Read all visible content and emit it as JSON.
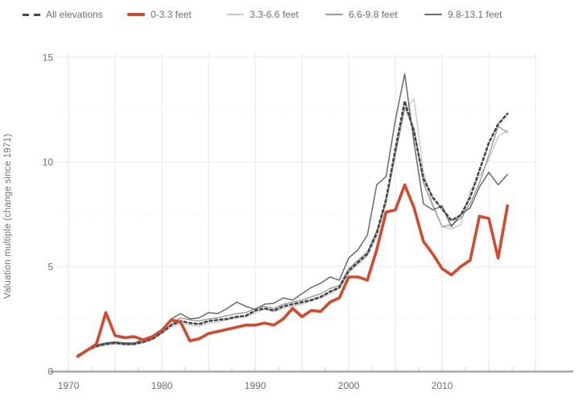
{
  "chart_data": {
    "type": "line",
    "title": "",
    "xlabel": "",
    "ylabel": "Valuation multiple (change since 1971)",
    "x_range": [
      1970,
      2020
    ],
    "ylim": [
      0,
      15
    ],
    "x_tick_labels": [
      "1970",
      "1980",
      "1990",
      "2000",
      "2010"
    ],
    "y_tick_labels": [
      "0",
      "5",
      "10",
      "15"
    ],
    "grid": {
      "x_step_years": 5,
      "y_major_step": 5,
      "y_minor_step": 2.5,
      "x_minor_tick_years": 2.5
    },
    "legend_position": "top",
    "x": [
      1971,
      1972,
      1973,
      1974,
      1975,
      1976,
      1977,
      1978,
      1979,
      1980,
      1981,
      1982,
      1983,
      1984,
      1985,
      1986,
      1987,
      1988,
      1989,
      1990,
      1991,
      1992,
      1993,
      1994,
      1995,
      1996,
      1997,
      1998,
      1999,
      2000,
      2001,
      2002,
      2003,
      2004,
      2005,
      2006,
      2007,
      2008,
      2009,
      2010,
      2011,
      2012,
      2013,
      2014,
      2015,
      2016,
      2017
    ],
    "series": [
      {
        "name": "All elevations",
        "key": "all-elevations",
        "color": "#474747",
        "style": "dashed",
        "width": 2.6,
        "z": 4,
        "values": [
          0.75,
          1.0,
          1.2,
          1.3,
          1.35,
          1.3,
          1.3,
          1.4,
          1.55,
          1.85,
          2.2,
          2.4,
          2.3,
          2.25,
          2.4,
          2.45,
          2.5,
          2.6,
          2.65,
          2.9,
          3.0,
          2.9,
          3.1,
          3.2,
          3.3,
          3.4,
          3.55,
          3.8,
          4.0,
          4.8,
          5.2,
          5.6,
          6.6,
          8.2,
          10.6,
          12.9,
          11.4,
          9.2,
          8.3,
          7.75,
          7.2,
          7.45,
          8.3,
          9.6,
          10.9,
          11.8,
          12.3
        ]
      },
      {
        "name": "0-3.3 feet",
        "key": "0-3.3-feet",
        "color": "#d6492a",
        "style": "solid",
        "width": 3.6,
        "z": 5,
        "values": [
          0.7,
          1.0,
          1.3,
          2.8,
          1.7,
          1.6,
          1.65,
          1.5,
          1.65,
          1.95,
          2.45,
          2.35,
          1.45,
          1.55,
          1.8,
          1.9,
          2.0,
          2.1,
          2.2,
          2.2,
          2.3,
          2.2,
          2.5,
          3.0,
          2.6,
          2.9,
          2.85,
          3.3,
          3.5,
          4.5,
          4.5,
          4.35,
          5.8,
          7.6,
          7.7,
          8.9,
          7.8,
          6.2,
          5.6,
          4.9,
          4.6,
          5.0,
          5.3,
          7.4,
          7.3,
          5.4,
          7.9
        ]
      },
      {
        "name": "3.3-6.6 feet",
        "key": "3.3-6.6-feet",
        "color": "#c9c9c9",
        "style": "solid",
        "width": 1.4,
        "z": 1,
        "values": [
          0.75,
          0.95,
          1.15,
          1.25,
          1.3,
          1.25,
          1.25,
          1.35,
          1.5,
          1.8,
          2.1,
          2.3,
          2.2,
          2.15,
          2.3,
          2.35,
          2.45,
          2.55,
          2.6,
          2.8,
          2.95,
          2.85,
          3.0,
          3.1,
          3.2,
          3.35,
          3.5,
          3.7,
          3.95,
          4.7,
          5.1,
          5.5,
          6.4,
          8.0,
          10.3,
          12.5,
          13.0,
          9.5,
          8.0,
          6.9,
          6.8,
          7.0,
          8.6,
          9.3,
          10.1,
          11.2,
          11.5
        ]
      },
      {
        "name": "6.6-9.8 feet",
        "key": "6.6-9.8-feet",
        "color": "#9b9b9b",
        "style": "solid",
        "width": 1.4,
        "z": 2,
        "values": [
          0.75,
          1.0,
          1.2,
          1.3,
          1.35,
          1.3,
          1.3,
          1.4,
          1.55,
          1.85,
          2.25,
          2.55,
          2.45,
          2.4,
          2.5,
          2.55,
          2.65,
          2.75,
          2.8,
          3.0,
          3.1,
          3.0,
          3.2,
          3.3,
          3.4,
          3.55,
          3.7,
          3.95,
          4.1,
          4.9,
          5.3,
          5.7,
          6.7,
          8.1,
          10.4,
          12.6,
          11.6,
          9.0,
          7.9,
          6.9,
          7.0,
          7.3,
          8.0,
          9.0,
          10.3,
          11.7,
          11.4
        ]
      },
      {
        "name": "9.8-13.1 feet",
        "key": "9.8-13.1-feet",
        "color": "#6a6a6a",
        "style": "solid",
        "width": 1.5,
        "z": 3,
        "values": [
          0.75,
          1.05,
          1.25,
          1.35,
          1.4,
          1.35,
          1.35,
          1.5,
          1.7,
          2.0,
          2.5,
          2.75,
          2.5,
          2.55,
          2.8,
          2.75,
          3.0,
          3.3,
          3.1,
          2.95,
          3.2,
          3.25,
          3.5,
          3.4,
          3.7,
          4.0,
          4.2,
          4.5,
          4.35,
          5.4,
          5.8,
          6.5,
          8.9,
          9.3,
          12.0,
          14.2,
          10.9,
          8.0,
          7.7,
          7.9,
          6.9,
          7.5,
          7.8,
          8.8,
          9.5,
          8.9,
          9.4
        ]
      }
    ],
    "colors": {
      "grid_major": "#e7e7e7",
      "grid_minor": "#e7e7e7",
      "axis_line": "#9a9a9a",
      "minor_tick": "#cfcfcf",
      "tick_label": "#707070",
      "legend_label": "#6f6f6f"
    }
  }
}
